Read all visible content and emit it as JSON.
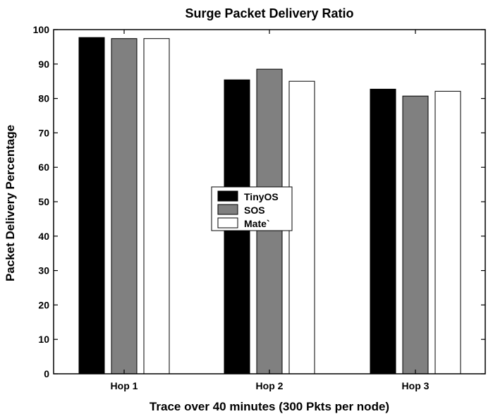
{
  "chart_data": {
    "type": "bar",
    "title": "Surge Packet Delivery Ratio",
    "xlabel": "Trace over 40 minutes (300 Pkts per node)",
    "ylabel": "Packet Delivery Percentage",
    "categories": [
      "Hop 1",
      "Hop 2",
      "Hop 3"
    ],
    "series": [
      {
        "name": "TinyOS",
        "color": "#000000",
        "values": [
          97.7,
          85.4,
          82.7
        ]
      },
      {
        "name": "SOS",
        "color": "#808080",
        "values": [
          97.4,
          88.5,
          80.7
        ]
      },
      {
        "name": "Mate`",
        "color": "#ffffff",
        "values": [
          97.4,
          85.0,
          82.1
        ]
      }
    ],
    "ylim": [
      0,
      100
    ],
    "yticks": [
      0,
      10,
      20,
      30,
      40,
      50,
      60,
      70,
      80,
      90,
      100
    ],
    "grid": false,
    "legend_position": "center"
  }
}
